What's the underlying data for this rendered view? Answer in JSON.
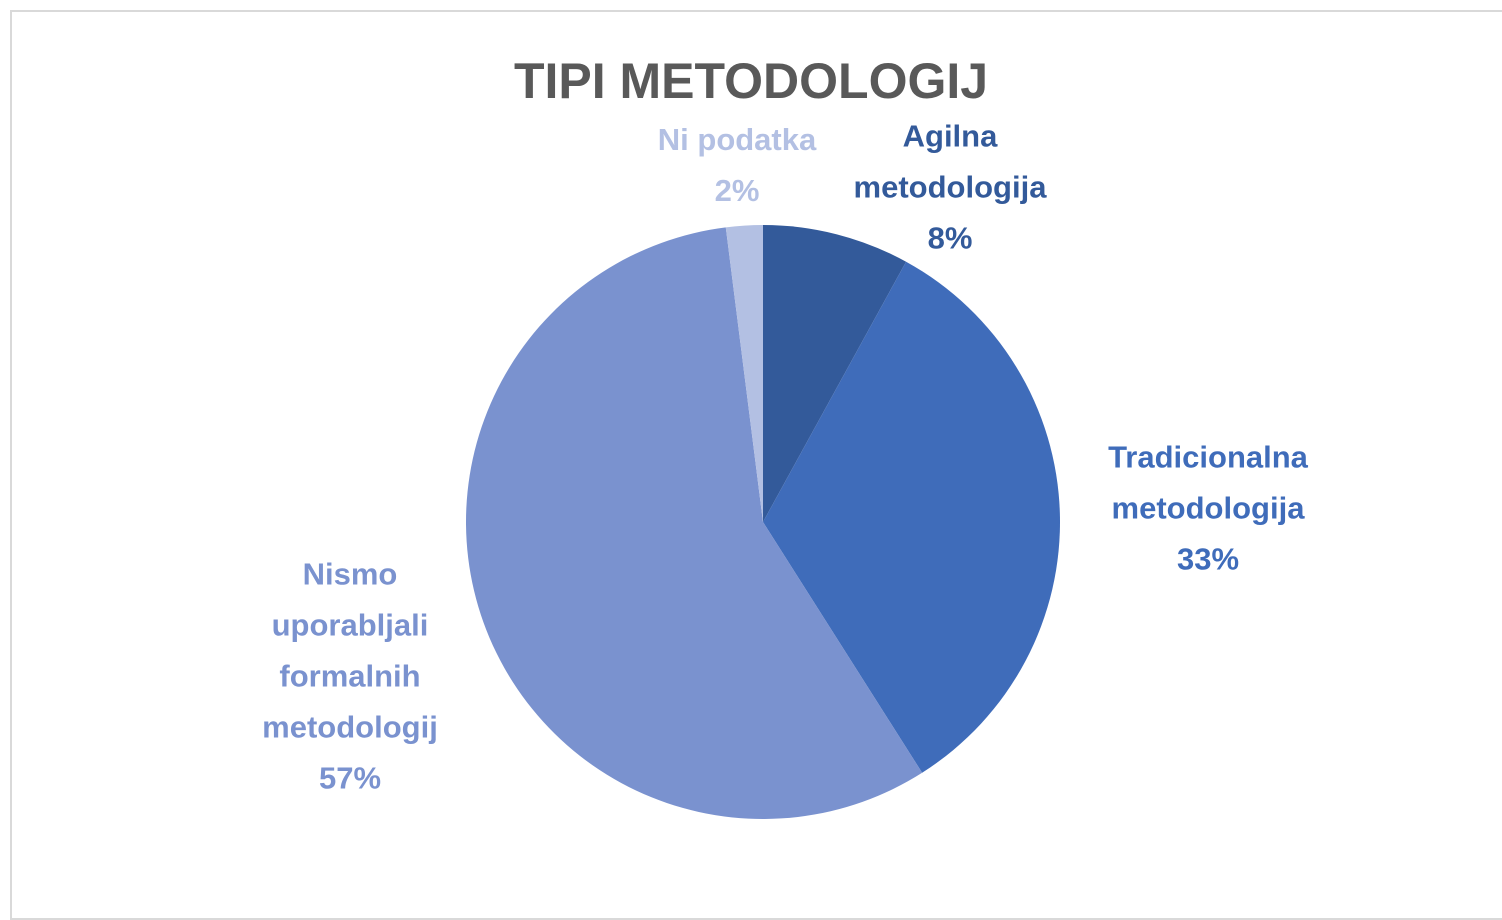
{
  "chart_data": {
    "type": "pie",
    "title": "TIPI METODOLOGIJ",
    "categories": [
      "Agilna metodologija",
      "Tradicionalna metodologija",
      "Nismo uporabljali formalnih metodologij",
      "Ni podatka"
    ],
    "values": [
      8,
      33,
      57,
      2
    ],
    "value_labels": [
      "8%",
      "33%",
      "57%",
      "2%"
    ],
    "colors": [
      "#335a9a",
      "#3f6cba",
      "#7a92cf",
      "#b3c0e3"
    ]
  }
}
